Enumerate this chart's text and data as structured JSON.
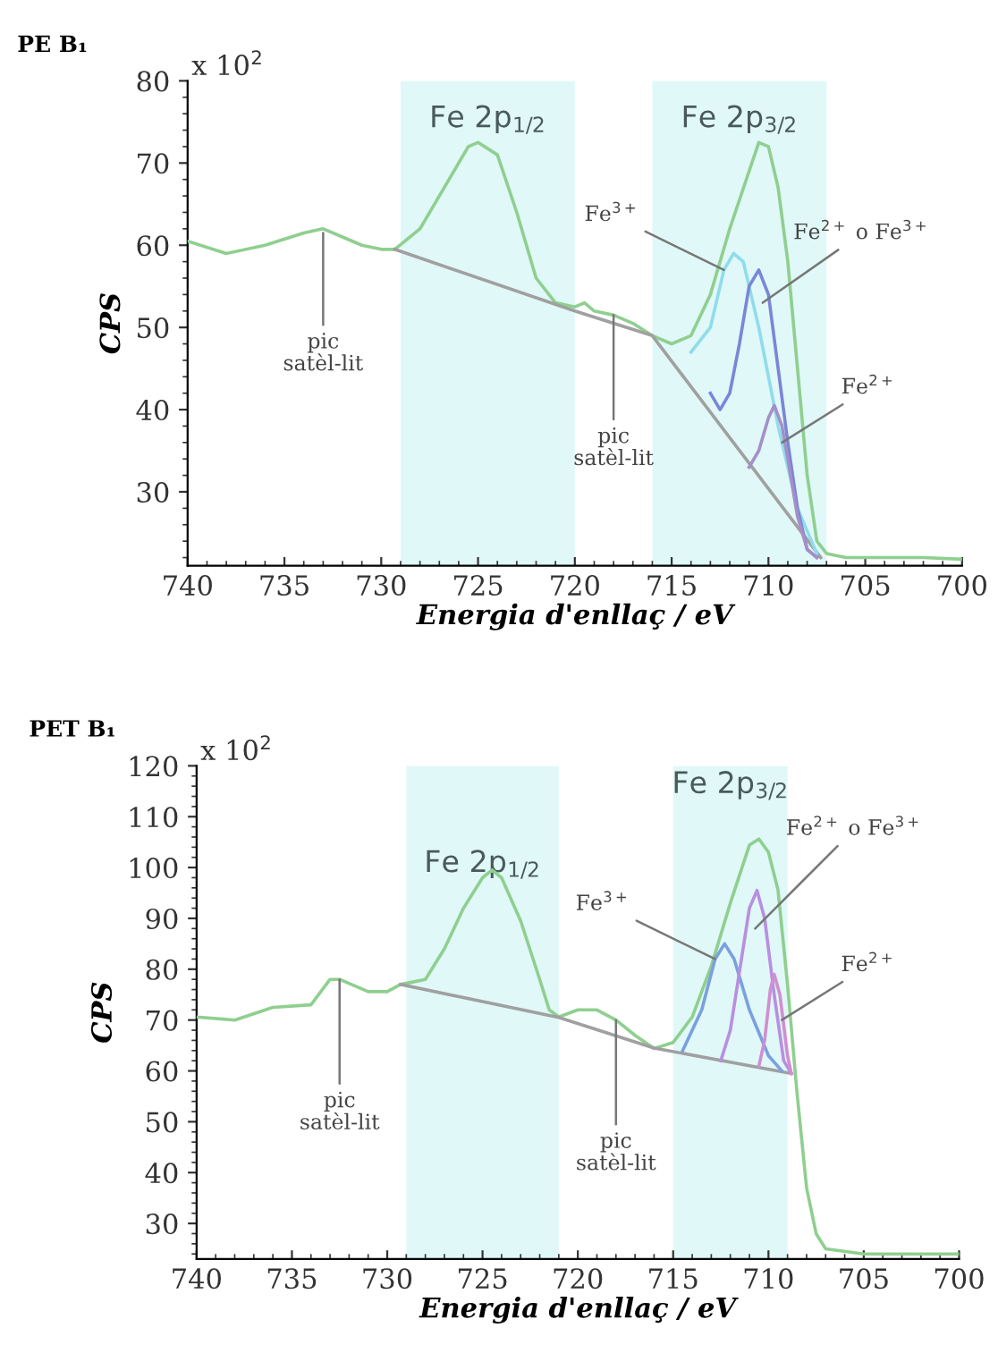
{
  "chart_data": [
    {
      "type": "line",
      "title": "PE B₁",
      "xlabel": "Energia d'enllaç / eV",
      "ylabel": "CPS",
      "xlim": [
        740,
        700
      ],
      "xticks": [
        740,
        735,
        730,
        725,
        720,
        715,
        710,
        705,
        700
      ],
      "ylim": [
        21,
        80
      ],
      "yticks": [
        30,
        40,
        50,
        60,
        70,
        80
      ],
      "grid": false,
      "legend": false,
      "bands": [
        {
          "axis": "x",
          "from": 729,
          "to": 720,
          "label": "Fe 2p$_{1/2}$",
          "color": "#e0f8f8"
        },
        {
          "axis": "x",
          "from": 716,
          "to": 707,
          "label": "Fe 2p$_{3/2}$",
          "color": "#e0f8f8"
        }
      ],
      "series": [
        {
          "color": "#8fcf8f",
          "x": [
            740,
            738,
            736,
            734,
            733,
            732,
            731,
            730,
            729.3,
            728,
            727,
            725.5,
            725,
            724,
            723,
            722,
            721,
            720,
            719.5,
            719,
            718,
            717,
            716,
            715,
            714,
            713,
            712,
            711,
            710.5,
            710,
            709.5,
            709,
            708.5,
            708,
            707.5,
            707,
            706,
            704,
            702,
            700
          ],
          "values": [
            60.5,
            59,
            60,
            61.5,
            62,
            61,
            60,
            59.5,
            59.5,
            62,
            66,
            72,
            72.5,
            71,
            64,
            56,
            53,
            52.5,
            53,
            52,
            51.5,
            50.5,
            49,
            48,
            49,
            54,
            62,
            69,
            72.5,
            72,
            67,
            58,
            45,
            32,
            24,
            22.5,
            22,
            22,
            22,
            21.8
          ]
        },
        {
          "color": "#a0a0a0",
          "x": [
            729.3,
            720,
            716,
            707.3
          ],
          "values": [
            59.5,
            52,
            49,
            22
          ]
        },
        {
          "color": "#8fdcec",
          "x": [
            714,
            713,
            712.3,
            711.8,
            711.3,
            710.5,
            709.5,
            708.5,
            707.5
          ],
          "values": [
            47,
            50,
            57,
            59,
            58,
            50,
            38,
            28,
            22.5
          ]
        },
        {
          "color": "#7a86d6",
          "x": [
            713,
            712.5,
            712,
            711.5,
            711,
            710.5,
            710,
            709.5,
            709,
            708.5,
            708,
            707.5
          ],
          "values": [
            42,
            40,
            42,
            48,
            55,
            57,
            54,
            45,
            36,
            28,
            23,
            22
          ]
        },
        {
          "color": "#a58fc8",
          "x": [
            711,
            710.5,
            710,
            709.7,
            709.3,
            709,
            708.5,
            708,
            707.5
          ],
          "values": [
            33,
            35,
            39,
            40.5,
            38,
            34,
            27,
            23,
            22
          ]
        }
      ],
      "annotations": [
        "x 10$^{2}$",
        {
          "text": "pic\nsatèl-lit",
          "x": 733,
          "y": 61.5
        },
        {
          "text": "pic\nsatèl-lit",
          "x": 718,
          "y": 51.5
        },
        {
          "text": "Fe$^{3+}$",
          "x": 712.3,
          "y": 57
        },
        {
          "text": "Fe$^{2+}$ o Fe$^{3+}$",
          "x": 710.3,
          "y": 53
        },
        {
          "text": "Fe$^{2+}$",
          "x": 709.3,
          "y": 36
        }
      ]
    },
    {
      "type": "line",
      "title": "PET B₁",
      "xlabel": "Energia d'enllaç / eV",
      "ylabel": "CPS",
      "xlim": [
        740,
        700
      ],
      "xticks": [
        740,
        735,
        730,
        725,
        720,
        715,
        710,
        705,
        700
      ],
      "ylim": [
        23,
        120
      ],
      "yticks": [
        30,
        40,
        50,
        60,
        70,
        80,
        90,
        100,
        110,
        120
      ],
      "grid": false,
      "legend": false,
      "bands": [
        {
          "axis": "x",
          "from": 729,
          "to": 721,
          "label": "Fe 2p$_{1/2}$",
          "color": "#e0f8f8"
        },
        {
          "axis": "x",
          "from": 715,
          "to": 709,
          "label": "Fe 2p$_{3/2}$",
          "color": "#e0f8f8"
        }
      ],
      "series": [
        {
          "color": "#8fcf8f",
          "x": [
            740,
            738,
            736,
            734,
            733,
            732.5,
            731,
            730,
            729.3,
            728,
            727,
            726,
            725,
            724.5,
            724,
            723,
            722,
            721.5,
            721,
            720,
            719,
            718,
            717,
            716,
            715,
            714,
            713,
            712,
            711,
            710.5,
            710,
            709.5,
            709,
            708.5,
            708,
            707.5,
            707,
            705,
            700
          ],
          "values": [
            70.6,
            70,
            72.5,
            73,
            78,
            78,
            75.6,
            75.6,
            77,
            78,
            84,
            92,
            98,
            99.5,
            98,
            89.5,
            78,
            72,
            70.6,
            72,
            72,
            70,
            67,
            64.4,
            65.6,
            70.6,
            80.6,
            93,
            104.4,
            105.6,
            103,
            95.6,
            77,
            55.6,
            37,
            28,
            25,
            24,
            24
          ]
        },
        {
          "color": "#a0a0a0",
          "x": [
            729.3,
            721,
            716,
            708.8
          ],
          "values": [
            77,
            70.5,
            64.5,
            59.5
          ]
        },
        {
          "color": "#7aa0e0",
          "x": [
            714.5,
            713.5,
            712.8,
            712.3,
            711.8,
            711,
            710,
            709.3
          ],
          "values": [
            64,
            72,
            82,
            85,
            82,
            72,
            63,
            60
          ]
        },
        {
          "color": "#b88fe0",
          "x": [
            712.5,
            712,
            711.5,
            711,
            710.6,
            710.2,
            709.7,
            709.2,
            708.8
          ],
          "values": [
            62,
            68,
            80,
            92,
            95.5,
            90,
            75,
            62,
            59.5
          ]
        },
        {
          "color": "#d08fd0",
          "x": [
            710.5,
            710.2,
            709.9,
            709.7,
            709.4,
            709,
            708.8
          ],
          "values": [
            61,
            66,
            76,
            79,
            75,
            63,
            59.5
          ]
        }
      ],
      "annotations": [
        "x 10$^{2}$",
        {
          "text": "pic\nsatèl-lit",
          "x": 732.5,
          "y": 78
        },
        {
          "text": "pic\nsatèl-lit",
          "x": 718,
          "y": 70
        },
        {
          "text": "Fe$^{3+}$",
          "x": 712.8,
          "y": 82
        },
        {
          "text": "Fe$^{2+}$ o Fe$^{3+}$",
          "x": 710.7,
          "y": 88
        },
        {
          "text": "Fe$^{2+}$",
          "x": 709.3,
          "y": 70
        }
      ]
    }
  ]
}
